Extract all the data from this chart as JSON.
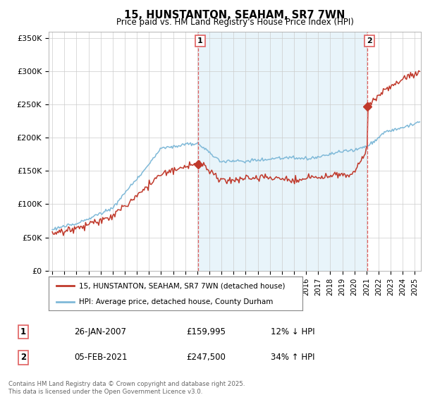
{
  "title": "15, HUNSTANTON, SEAHAM, SR7 7WN",
  "subtitle": "Price paid vs. HM Land Registry's House Price Index (HPI)",
  "ylabel_ticks": [
    "£0",
    "£50K",
    "£100K",
    "£150K",
    "£200K",
    "£250K",
    "£300K",
    "£350K"
  ],
  "ytick_values": [
    0,
    50000,
    100000,
    150000,
    200000,
    250000,
    300000,
    350000
  ],
  "ylim": [
    0,
    360000
  ],
  "xlim_start": 1994.7,
  "xlim_end": 2025.5,
  "sale1_date": 2007.07,
  "sale1_price": 159995,
  "sale2_date": 2021.09,
  "sale2_price": 247500,
  "legend_line1": "15, HUNSTANTON, SEAHAM, SR7 7WN (detached house)",
  "legend_line2": "HPI: Average price, detached house, County Durham",
  "table_row1": [
    "1",
    "26-JAN-2007",
    "£159,995",
    "12% ↓ HPI"
  ],
  "table_row2": [
    "2",
    "05-FEB-2021",
    "£247,500",
    "34% ↑ HPI"
  ],
  "footer": "Contains HM Land Registry data © Crown copyright and database right 2025.\nThis data is licensed under the Open Government Licence v3.0.",
  "color_red": "#c0392b",
  "color_blue": "#7fb9d8",
  "color_fill": "#daeef7",
  "color_vline": "#e06060",
  "background": "#ffffff",
  "grid_color": "#cccccc"
}
